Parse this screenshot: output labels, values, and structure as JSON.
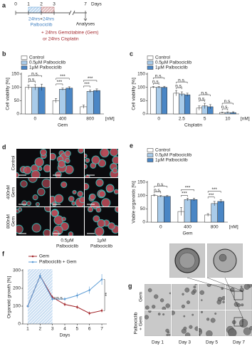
{
  "timeline": {
    "label": "a",
    "days": [
      "0",
      "1",
      "2",
      "3",
      "7"
    ],
    "days_title": "Days",
    "pretreat": [
      "24hrs",
      "+",
      "24hrs"
    ],
    "drug": "Palbociclib",
    "treatments": [
      "+ 24hrs Gemcitabine (Gem)",
      "or 24hrs Cisplatin"
    ],
    "endpoint": "Analyses"
  },
  "chart_data": [
    {
      "type": "bar",
      "panel": "b",
      "ylabel": "Cell viability [%]",
      "xlabel": "Gem",
      "x_unit": "[nM]",
      "categories": [
        "0",
        "400",
        "800"
      ],
      "ylim": [
        0,
        150
      ],
      "yticks": [
        0,
        50,
        100,
        150
      ],
      "series": [
        {
          "name": "Control",
          "color": "#ffffff",
          "values": [
            100,
            50,
            27
          ],
          "errors": [
            8,
            8,
            6
          ]
        },
        {
          "name": "0.5µM Palbociclib",
          "color": "#a9cbe9",
          "values": [
            100,
            93,
            85
          ],
          "errors": [
            10,
            4,
            5
          ]
        },
        {
          "name": "1µM Palbociclib",
          "color": "#4a86c5",
          "values": [
            100,
            97,
            88
          ],
          "errors": [
            12,
            5,
            6
          ]
        }
      ],
      "annotations": [
        {
          "text": "n.s.",
          "category": 0,
          "from": 0,
          "to": 1
        },
        {
          "text": "n.s.",
          "category": 0,
          "from": 0,
          "to": 2
        },
        {
          "text": "***",
          "category": 1,
          "from": 0,
          "to": 1
        },
        {
          "text": "***",
          "category": 1,
          "from": 0,
          "to": 2
        },
        {
          "text": "***",
          "category": 2,
          "from": 0,
          "to": 1
        },
        {
          "text": "***",
          "category": 2,
          "from": 0,
          "to": 2
        }
      ]
    },
    {
      "type": "bar",
      "panel": "c",
      "ylabel": "Cell viability [%]",
      "xlabel": "Cisplatin",
      "x_unit": "[nM]",
      "categories": [
        "0",
        "2.5",
        "5",
        "10"
      ],
      "ylim": [
        0,
        150
      ],
      "yticks": [
        0,
        50,
        100,
        150
      ],
      "series": [
        {
          "name": "Control",
          "color": "#ffffff",
          "values": [
            100,
            78,
            22,
            5
          ],
          "errors": [
            3,
            10,
            8,
            2
          ]
        },
        {
          "name": "0.5µM Palbociclib",
          "color": "#a9cbe9",
          "values": [
            100,
            75,
            30,
            5
          ],
          "errors": [
            3,
            8,
            10,
            3
          ]
        },
        {
          "name": "1µM Palbociclib",
          "color": "#4a86c5",
          "values": [
            100,
            72,
            27,
            5
          ],
          "errors": [
            4,
            6,
            8,
            3
          ]
        }
      ],
      "annotations": [
        {
          "text": "n.s.",
          "category": 0,
          "from": 0,
          "to": 1
        },
        {
          "text": "n.s.",
          "category": 0,
          "from": 0,
          "to": 2
        },
        {
          "text": "n.s.",
          "category": 1,
          "from": 0,
          "to": 1
        },
        {
          "text": "n.s.",
          "category": 1,
          "from": 0,
          "to": 2
        },
        {
          "text": "n.s.",
          "category": 2,
          "from": 0,
          "to": 1
        },
        {
          "text": "n.s.",
          "category": 2,
          "from": 0,
          "to": 2
        },
        {
          "text": "n.s.",
          "category": 3,
          "from": 0,
          "to": 1
        },
        {
          "text": "n.s.",
          "category": 3,
          "from": 0,
          "to": 2
        }
      ]
    },
    {
      "type": "bar",
      "panel": "e",
      "ylabel": "Viable organoids [%]",
      "xlabel": "Gem",
      "x_unit": "[nM]",
      "categories": [
        "0",
        "400",
        "800"
      ],
      "ylim": [
        0,
        150
      ],
      "yticks": [
        0,
        50,
        100,
        150
      ],
      "series": [
        {
          "name": "Control",
          "color": "#ffffff",
          "values": [
            100,
            40,
            27
          ],
          "errors": [
            3,
            15,
            5
          ]
        },
        {
          "name": "0.5µM Palbociclib",
          "color": "#a9cbe9",
          "values": [
            97,
            85,
            70
          ],
          "errors": [
            3,
            5,
            8
          ]
        },
        {
          "name": "1µM Palbociclib",
          "color": "#4a86c5",
          "values": [
            97,
            85,
            78
          ],
          "errors": [
            3,
            5,
            6
          ]
        }
      ],
      "annotations": [
        {
          "text": "n.s.",
          "category": 0,
          "from": 0,
          "to": 1
        },
        {
          "text": "n.s.",
          "category": 0,
          "from": 0,
          "to": 2
        },
        {
          "text": "***",
          "category": 1,
          "from": 0,
          "to": 1
        },
        {
          "text": "***",
          "category": 1,
          "from": 0,
          "to": 2
        },
        {
          "text": "***",
          "category": 2,
          "from": 0,
          "to": 1
        },
        {
          "text": "***",
          "category": 2,
          "from": 0,
          "to": 2
        }
      ]
    },
    {
      "type": "line",
      "panel": "f",
      "ylabel": "Organoid growth [%]",
      "xlabel": "Days",
      "x": [
        1,
        2,
        3,
        4,
        5,
        6,
        7
      ],
      "xlim": [
        0.6,
        7.4
      ],
      "xticks": [
        1,
        2,
        3,
        4,
        5,
        6,
        7
      ],
      "ylim": [
        0,
        300
      ],
      "yticks": [
        0,
        100,
        200,
        300
      ],
      "shade": [
        1,
        3
      ],
      "series": [
        {
          "name": "Gem",
          "color": "#a3262b",
          "values": [
            100,
            270,
            150,
            110,
            95,
            60,
            75
          ],
          "errors": [
            0,
            15,
            10,
            10,
            10,
            10,
            10
          ]
        },
        {
          "name": "Palbociclib + Gem",
          "color": "#5b9bd5",
          "values": [
            100,
            270,
            140,
            140,
            160,
            190,
            250
          ],
          "errors": [
            0,
            15,
            10,
            10,
            15,
            20,
            30
          ]
        }
      ],
      "annotations": [
        {
          "text": "n.s.",
          "x": 3
        },
        {
          "text": "**",
          "x": 7
        }
      ]
    }
  ],
  "images_d": {
    "label": "d",
    "rows": [
      [
        "Control"
      ],
      [
        "400nM",
        "Gem"
      ],
      [
        "800nM",
        "Gem"
      ]
    ],
    "columns": [
      [
        "0.5µM",
        "Palbociclib"
      ],
      [
        "1µM",
        "Palbociclib"
      ]
    ]
  },
  "images_g": {
    "label": "g",
    "rows": [
      [
        "Gem"
      ],
      [
        "Palbociclib",
        "+ Gem"
      ]
    ],
    "columns": [
      "Day 1",
      "Day 3",
      "Day 5",
      "Day 7"
    ]
  }
}
